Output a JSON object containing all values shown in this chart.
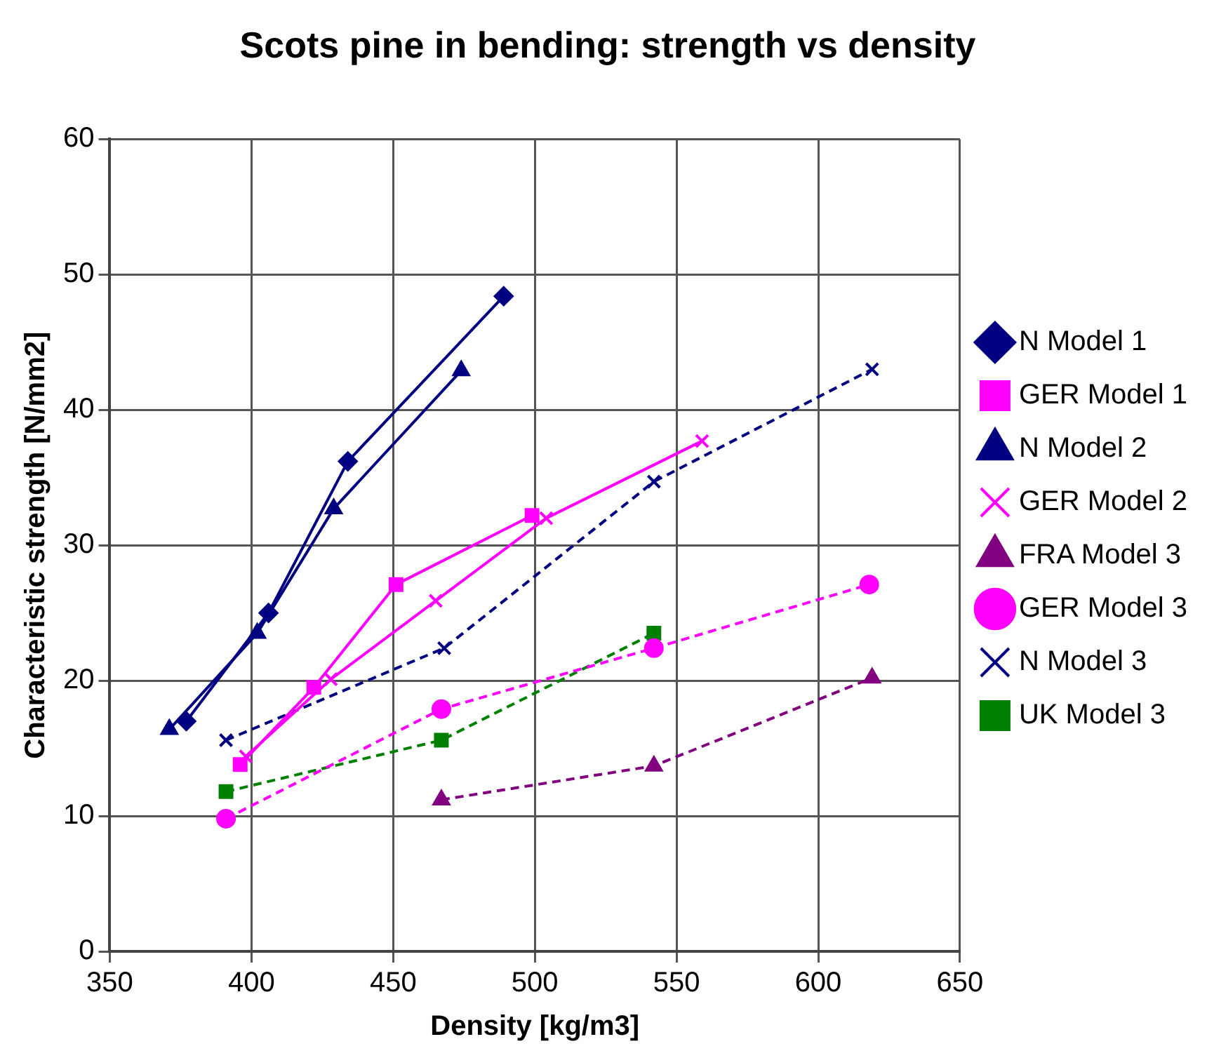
{
  "chart_data": {
    "type": "line",
    "title": "Scots pine in bending: strength vs density",
    "xlabel": "Density [kg/m3]",
    "ylabel": "Characteristic strength [N/mm2]",
    "xlim": [
      350,
      650
    ],
    "xticks": [
      350,
      400,
      450,
      500,
      550,
      600,
      650
    ],
    "ylim": [
      0,
      60
    ],
    "yticks": [
      0,
      10,
      20,
      30,
      40,
      50,
      60
    ],
    "grid": true,
    "legend": "right",
    "series": [
      {
        "name": "N Model 1",
        "color": "#000080",
        "marker": "diamond",
        "line_style": "solid",
        "x": [
          377,
          406,
          434,
          489
        ],
        "values": [
          17,
          25,
          36.2,
          48.4
        ]
      },
      {
        "name": "GER Model 1",
        "color": "#ff00ff",
        "marker": "square",
        "line_style": "solid",
        "x": [
          396,
          422,
          451,
          499
        ],
        "values": [
          13.8,
          19.5,
          27.1,
          32.2
        ]
      },
      {
        "name": "N Model 2",
        "color": "#000080",
        "marker": "triangle",
        "line_style": "solid",
        "x": [
          371,
          402,
          429,
          474
        ],
        "values": [
          16.4,
          23.5,
          32.7,
          42.9
        ]
      },
      {
        "name": "GER Model 2",
        "color": "#ff00ff",
        "marker": "cross",
        "line_style": "solid",
        "x": [
          398,
          428,
          465,
          504,
          559
        ],
        "values": [
          14.4,
          20.1,
          25.9,
          32,
          37.7
        ]
      },
      {
        "name": "FRA Model 3",
        "color": "#800080",
        "marker": "triangle",
        "line_style": "dashed",
        "x": [
          467,
          542,
          619
        ],
        "values": [
          11.2,
          13.7,
          20.2
        ]
      },
      {
        "name": "GER Model 3",
        "color": "#ff00ff",
        "marker": "circle",
        "line_style": "dashed",
        "x": [
          391,
          467,
          542,
          618
        ],
        "values": [
          9.8,
          17.9,
          22.4,
          27.1
        ]
      },
      {
        "name": "N Model 3",
        "color": "#000080",
        "marker": "cross",
        "line_style": "dashed",
        "x": [
          391,
          468,
          542,
          619
        ],
        "values": [
          15.6,
          22.4,
          34.7,
          43
        ]
      },
      {
        "name": "UK Model 3",
        "color": "#008000",
        "marker": "square",
        "line_style": "dashed",
        "x": [
          391,
          467,
          542
        ],
        "values": [
          11.8,
          15.6,
          23.5
        ]
      }
    ]
  }
}
